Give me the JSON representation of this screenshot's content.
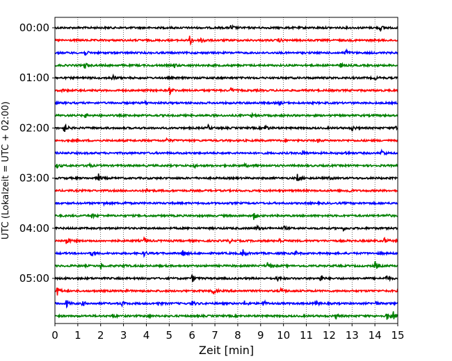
{
  "chart_data": {
    "type": "line",
    "title": "",
    "xlabel": "Zeit  [min]",
    "ylabel": "UTC (Lokalzeit = UTC + 02:00)",
    "xlim": [
      0,
      15
    ],
    "x_ticks": [
      "0",
      "1",
      "2",
      "3",
      "4",
      "5",
      "6",
      "7",
      "8",
      "9",
      "10",
      "11",
      "12",
      "13",
      "14",
      "15"
    ],
    "y_ticks": [
      "00:00",
      "01:00",
      "02:00",
      "03:00",
      "04:00",
      "05:00"
    ],
    "trace_colors": [
      "#000000",
      "#ff0000",
      "#0000ff",
      "#008000"
    ],
    "trace_interval_minutes": 15,
    "grid": "vertical dotted lines at each minute",
    "series": [
      {
        "start": "00:00",
        "color": "#000000",
        "events": [
          [
            7.7,
            0.6
          ],
          [
            14.2,
            0.7
          ]
        ]
      },
      {
        "start": "00:15",
        "color": "#ff0000",
        "events": [
          [
            5.9,
            1.0
          ],
          [
            6.4,
            0.9
          ],
          [
            9.8,
            0.3
          ]
        ]
      },
      {
        "start": "00:30",
        "color": "#0000ff",
        "events": [
          [
            1.3,
            0.5
          ],
          [
            12.7,
            0.8
          ]
        ]
      },
      {
        "start": "00:45",
        "color": "#008000",
        "events": [
          [
            1.3,
            0.6
          ],
          [
            5.2,
            0.5
          ],
          [
            12.5,
            0.4
          ]
        ]
      },
      {
        "start": "01:00",
        "color": "#000000",
        "events": [
          [
            2.5,
            0.7
          ],
          [
            14.0,
            0.3
          ]
        ]
      },
      {
        "start": "01:15",
        "color": "#ff0000",
        "events": [
          [
            0.3,
            0.3
          ],
          [
            5.0,
            0.8
          ],
          [
            7.7,
            0.5
          ]
        ]
      },
      {
        "start": "01:30",
        "color": "#0000ff",
        "events": [
          [
            3.9,
            0.3
          ],
          [
            9.8,
            0.3
          ]
        ]
      },
      {
        "start": "01:45",
        "color": "#008000",
        "events": [
          [
            1.3,
            0.5
          ],
          [
            8.6,
            0.3
          ]
        ]
      },
      {
        "start": "02:00",
        "color": "#000000",
        "events": [
          [
            0.4,
            1.0
          ],
          [
            6.7,
            0.5
          ],
          [
            9.2,
            0.7
          ],
          [
            13.0,
            0.5
          ],
          [
            14.9,
            0.6
          ]
        ]
      },
      {
        "start": "02:15",
        "color": "#ff0000",
        "events": [
          [
            4.9,
            0.5
          ],
          [
            11.5,
            0.3
          ]
        ]
      },
      {
        "start": "02:30",
        "color": "#0000ff",
        "events": [
          [
            10.8,
            0.6
          ],
          [
            12.7,
            0.4
          ],
          [
            14.3,
            0.7
          ]
        ]
      },
      {
        "start": "02:45",
        "color": "#008000",
        "events": [
          [
            0.1,
            0.4
          ],
          [
            1.4,
            0.7
          ],
          [
            6.1,
            0.3
          ],
          [
            8.3,
            0.3
          ],
          [
            8.8,
            0.3
          ]
        ]
      },
      {
        "start": "03:00",
        "color": "#000000",
        "events": [
          [
            1.9,
            0.8
          ],
          [
            10.6,
            0.8
          ],
          [
            12.0,
            0.3
          ]
        ]
      },
      {
        "start": "03:15",
        "color": "#ff0000",
        "events": [
          [
            4.0,
            0.4
          ],
          [
            12.8,
            0.6
          ]
        ]
      },
      {
        "start": "03:30",
        "color": "#0000ff",
        "events": [
          [
            2.1,
            0.4
          ],
          [
            3.0,
            0.3
          ]
        ]
      },
      {
        "start": "03:45",
        "color": "#008000",
        "events": [
          [
            1.6,
            0.5
          ],
          [
            8.7,
            0.8
          ],
          [
            14.5,
            0.4
          ]
        ]
      },
      {
        "start": "04:00",
        "color": "#000000",
        "events": [
          [
            8.8,
            0.6
          ],
          [
            10.0,
            0.4
          ],
          [
            12.6,
            0.4
          ]
        ]
      },
      {
        "start": "04:15",
        "color": "#ff0000",
        "events": [
          [
            0.5,
            0.9
          ],
          [
            3.9,
            0.5
          ],
          [
            7.6,
            0.5
          ],
          [
            9.8,
            0.5
          ],
          [
            14.4,
            0.6
          ]
        ]
      },
      {
        "start": "04:30",
        "color": "#0000ff",
        "events": [
          [
            1.6,
            0.5
          ],
          [
            3.9,
            0.5
          ],
          [
            5.6,
            0.8
          ],
          [
            8.2,
            1.0
          ],
          [
            10.5,
            0.4
          ],
          [
            14.2,
            0.3
          ]
        ]
      },
      {
        "start": "04:45",
        "color": "#008000",
        "events": [
          [
            2.0,
            0.5
          ],
          [
            3.0,
            0.3
          ],
          [
            9.3,
            0.8
          ],
          [
            14.0,
            0.9
          ]
        ]
      },
      {
        "start": "05:00",
        "color": "#000000",
        "events": [
          [
            6.0,
            0.7
          ],
          [
            9.7,
            0.5
          ],
          [
            11.6,
            0.7
          ],
          [
            14.5,
            0.8
          ]
        ]
      },
      {
        "start": "05:15",
        "color": "#ff0000",
        "events": [
          [
            0.1,
            1.0
          ],
          [
            3.0,
            0.4
          ],
          [
            6.9,
            0.9
          ],
          [
            9.9,
            0.8
          ]
        ]
      },
      {
        "start": "05:30",
        "color": "#0000ff",
        "events": [
          [
            0.5,
            0.9
          ],
          [
            1.2,
            0.5
          ],
          [
            2.9,
            0.5
          ],
          [
            4.5,
            0.4
          ],
          [
            6.0,
            0.5
          ],
          [
            8.3,
            0.6
          ],
          [
            9.1,
            0.7
          ],
          [
            11.4,
            0.6
          ],
          [
            14.0,
            0.5
          ]
        ]
      },
      {
        "start": "05:45",
        "color": "#008000",
        "events": [
          [
            2.5,
            0.4
          ],
          [
            4.0,
            0.4
          ],
          [
            12.3,
            0.5
          ],
          [
            14.5,
            0.9
          ],
          [
            14.8,
            0.8
          ]
        ]
      }
    ]
  }
}
